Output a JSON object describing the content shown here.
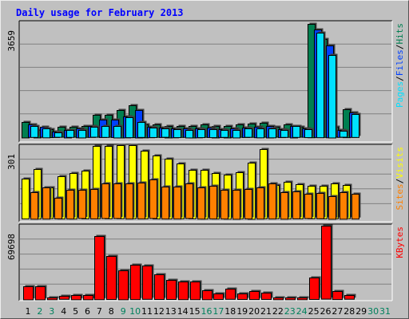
{
  "chart_data": {
    "type": "bar",
    "title": "Daily usage for February 2013",
    "colors": {
      "background": "#c0c0c0",
      "plot": "#c0c0c0",
      "hits": "#007f50",
      "files": "#0040ff",
      "pages": "#00e0ff",
      "visits": "#ffff00",
      "sites": "#ff8000",
      "kbytes": "#ff0000",
      "title": "#0000ff",
      "weekday_label": "#000000",
      "weekend_label": "#00805c"
    },
    "days": [
      {
        "label": "1",
        "weekend": false
      },
      {
        "label": "2",
        "weekend": true
      },
      {
        "label": "3",
        "weekend": true
      },
      {
        "label": "4",
        "weekend": false
      },
      {
        "label": "5",
        "weekend": false
      },
      {
        "label": "6",
        "weekend": false
      },
      {
        "label": "7",
        "weekend": false
      },
      {
        "label": "8",
        "weekend": false
      },
      {
        "label": "9",
        "weekend": true
      },
      {
        "label": "10",
        "weekend": true
      },
      {
        "label": "11",
        "weekend": false
      },
      {
        "label": "12",
        "weekend": false
      },
      {
        "label": "13",
        "weekend": false
      },
      {
        "label": "14",
        "weekend": false
      },
      {
        "label": "15",
        "weekend": false
      },
      {
        "label": "16",
        "weekend": true
      },
      {
        "label": "17",
        "weekend": true
      },
      {
        "label": "18",
        "weekend": false
      },
      {
        "label": "19",
        "weekend": false
      },
      {
        "label": "20",
        "weekend": false
      },
      {
        "label": "21",
        "weekend": false
      },
      {
        "label": "22",
        "weekend": false
      },
      {
        "label": "23",
        "weekend": true
      },
      {
        "label": "24",
        "weekend": true
      },
      {
        "label": "25",
        "weekend": false
      },
      {
        "label": "26",
        "weekend": false
      },
      {
        "label": "27",
        "weekend": false
      },
      {
        "label": "28",
        "weekend": false
      },
      {
        "label": "29",
        "weekend": false
      },
      {
        "label": "30",
        "weekend": true
      },
      {
        "label": "31",
        "weekend": true
      }
    ],
    "panels": [
      {
        "key": "hits_files_pages",
        "axis_max": 3659,
        "axis_label": "3659",
        "legend": [
          {
            "text": "Pages",
            "color": "#00e0ff"
          },
          {
            "text": "/",
            "color": "#000000"
          },
          {
            "text": "Files",
            "color": "#0040ff"
          },
          {
            "text": "/",
            "color": "#000000"
          },
          {
            "text": "Hits",
            "color": "#007f50"
          }
        ],
        "series": [
          {
            "name": "Hits",
            "color": "#007f50",
            "values": [
              487,
              236,
              251,
              314,
              314,
              345,
              691,
              691,
              864,
              1005,
              409,
              393,
              362,
              346,
              362,
              393,
              362,
              362,
              393,
              418,
              440,
              314,
              393,
              314,
              3564,
              3077,
              314,
              880,
              0,
              0,
              0
            ]
          },
          {
            "name": "Files",
            "color": "#0040ff",
            "values": [
              393,
              314,
              173,
              236,
              283,
              346,
              550,
              550,
              660,
              864,
              330,
              299,
              283,
              267,
              283,
              299,
              252,
              267,
              299,
              330,
              362,
              252,
              362,
              267,
              3378,
              2889,
              220,
              770,
              0,
              0,
              0
            ]
          },
          {
            "name": "Pages",
            "color": "#00e0ff",
            "values": [
              346,
              283,
              141,
              220,
              236,
              314,
              346,
              362,
              629,
              472,
              299,
              267,
              252,
              236,
              252,
              252,
              220,
              236,
              267,
              283,
              283,
              220,
              346,
              252,
              3287,
              2593,
              189,
              723,
              0,
              0,
              0
            ]
          }
        ]
      },
      {
        "key": "visits_sites",
        "axis_max": 301,
        "axis_label": "301",
        "legend": [
          {
            "text": "Sites",
            "color": "#ff8000"
          },
          {
            "text": "/",
            "color": "#000000"
          },
          {
            "text": "Visits",
            "color": "#ffff00"
          }
        ],
        "series": [
          {
            "name": "Visits",
            "color": "#ffff00",
            "values": [
              162,
              201,
              125,
              172,
              185,
              194,
              294,
              294,
              297,
              297,
              275,
              256,
              243,
              223,
              197,
              198,
              185,
              179,
              188,
              228,
              281,
              135,
              149,
              139,
              132,
              132,
              142,
              135,
              0,
              0,
              0
            ]
          },
          {
            "name": "Sites",
            "color": "#ff8000",
            "values": [
              108,
              127,
              84,
              117,
              115,
              120,
              141,
              141,
              143,
              146,
              157,
              130,
              130,
              141,
              127,
              133,
              117,
              118,
              120,
              127,
              143,
              108,
              110,
              99,
              103,
              92,
              108,
              101,
              0,
              0,
              0
            ]
          }
        ]
      },
      {
        "key": "kbytes",
        "axis_max": 69698,
        "axis_label": "69698",
        "legend": [
          {
            "text": "KBytes",
            "color": "#ff0000"
          }
        ],
        "series": [
          {
            "name": "KBytes",
            "color": "#ff0000",
            "values": [
              12200,
              12200,
              1741,
              2800,
              4000,
              4000,
              58800,
              40100,
              27000,
              32000,
              31000,
              23000,
              17800,
              16500,
              16500,
              8400,
              5200,
              9500,
              5200,
              7500,
              5900,
              1741,
              1741,
              1741,
              20000,
              67900,
              7500,
              3500,
              0,
              0,
              0
            ]
          }
        ]
      }
    ]
  }
}
